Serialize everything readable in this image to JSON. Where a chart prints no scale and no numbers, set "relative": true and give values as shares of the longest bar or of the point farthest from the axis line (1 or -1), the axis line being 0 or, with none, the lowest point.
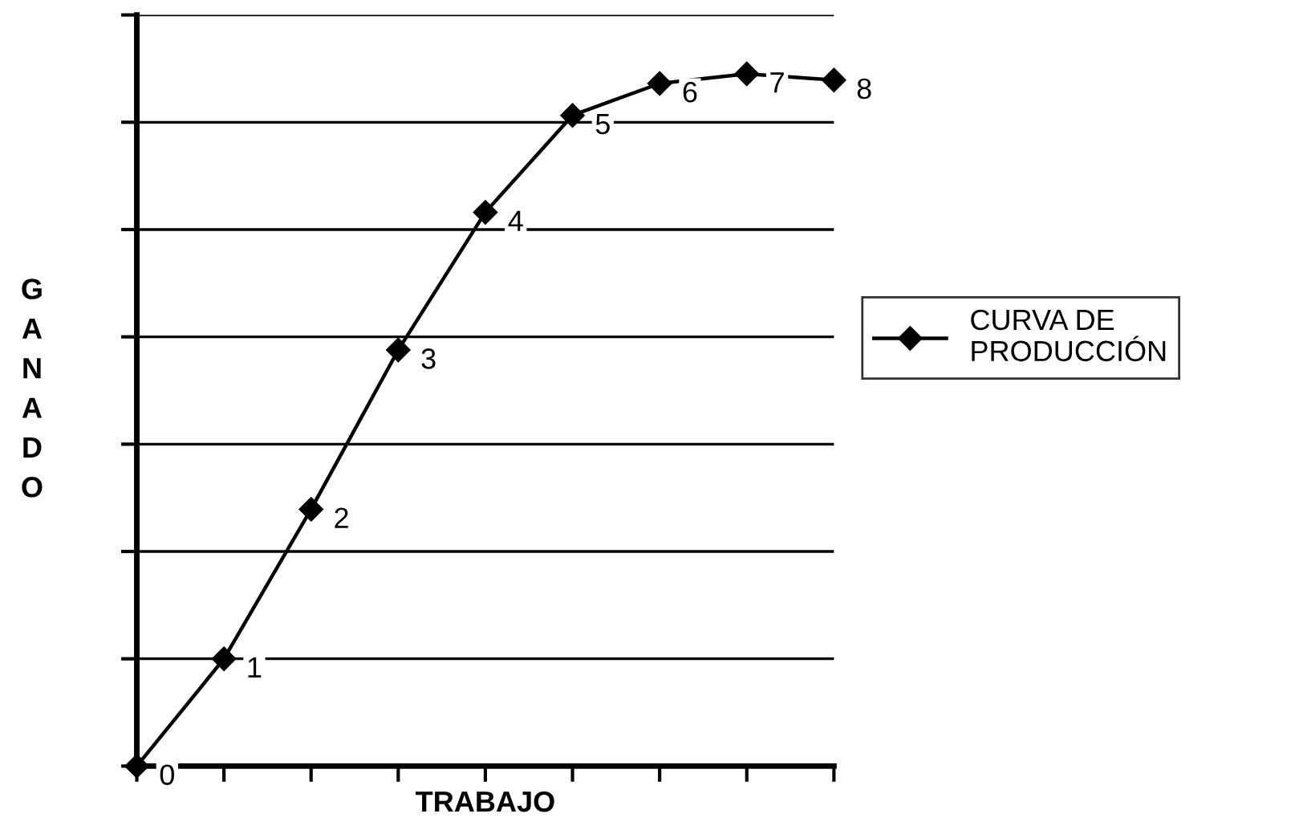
{
  "chart_data": {
    "type": "line",
    "relative": true,
    "xlabel": "TRABAJO",
    "ylabel": "GANADO",
    "categories": [
      null,
      null,
      null,
      null,
      null,
      null,
      null,
      null,
      null
    ],
    "series": [
      {
        "name": "CURVA DE\nPRODUCCIÓN",
        "color": "#000000",
        "values": [
          0,
          0.155,
          0.371,
          0.601,
          0.8,
          0.94,
          0.986,
          1,
          0.991
        ]
      }
    ],
    "annotations": [
      "0",
      "1",
      "2",
      "3",
      "4",
      "5",
      "6",
      "7",
      "8"
    ],
    "marker": "diamond",
    "line_style": "solid",
    "grid": "y",
    "legend": "right",
    "tick_labels": false
  }
}
